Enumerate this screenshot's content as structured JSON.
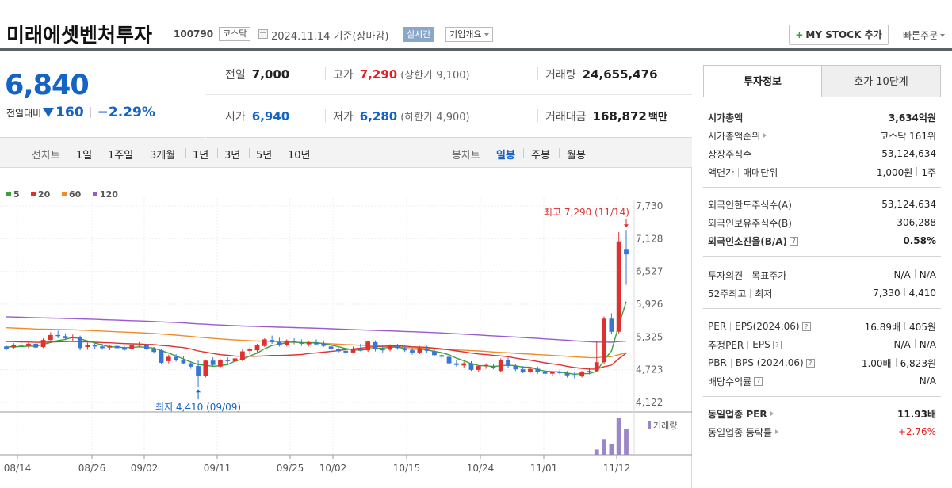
{
  "header": {
    "name": "미래에셋벤처투자",
    "code": "100790",
    "market": "코스닥",
    "date": "2024.11.14  기준(장마감)",
    "realtime": "실시간",
    "company_info": "기업개요",
    "mystock_plus": "+",
    "mystock": "MY STOCK 추가",
    "quick_order": "빠른주문"
  },
  "price": {
    "current": "6,840",
    "change_label": "전일대비",
    "change": "160",
    "change_pct": "−2.29%"
  },
  "quotes": {
    "prev_label": "전일",
    "prev": "7,000",
    "high_label": "고가",
    "high": "7,290",
    "upper_limit": "(상한가 9,100)",
    "volume_label": "거래량",
    "volume": "24,655,476",
    "open_label": "시가",
    "open": "6,940",
    "low_label": "저가",
    "low": "6,280",
    "lower_limit": "(하한가 4,900)",
    "amount_label": "거래대금",
    "amount": "168,872",
    "amount_unit": "백만"
  },
  "periods": {
    "line_label": "선차트",
    "line": [
      "1일",
      "1주일",
      "3개월",
      "1년",
      "3년",
      "5년",
      "10년"
    ],
    "candle_label": "봉차트",
    "candle": [
      "일봉",
      "주봉",
      "월봉"
    ],
    "selected_candle": "일봉"
  },
  "chart_data": {
    "type": "candlestick",
    "legend": [
      {
        "name": "5",
        "color": "#3aa03a"
      },
      {
        "name": "20",
        "color": "#e03131"
      },
      {
        "name": "60",
        "color": "#f08c2c"
      },
      {
        "name": "120",
        "color": "#9b59d0"
      }
    ],
    "y_ticks": [
      "7,730",
      "7,128",
      "6,527",
      "5,926",
      "5,325",
      "4,723",
      "4,122"
    ],
    "ylim": [
      4122,
      7730
    ],
    "x_ticks": [
      "08/14",
      "08/26",
      "09/02",
      "09/11",
      "09/25",
      "10/02",
      "10/15",
      "10/24",
      "11/01",
      "11/12"
    ],
    "high_annotation": "최고 7,290 (11/14)",
    "low_annotation": "최저 4,410 (09/09)",
    "volume_label": "거래량",
    "candles": [
      [
        5150,
        5180,
        5080,
        5100
      ],
      [
        5130,
        5210,
        5100,
        5180
      ],
      [
        5180,
        5260,
        5140,
        5160
      ],
      [
        5160,
        5230,
        5120,
        5200
      ],
      [
        5200,
        5260,
        5110,
        5130
      ],
      [
        5140,
        5300,
        5120,
        5270
      ],
      [
        5270,
        5410,
        5220,
        5360
      ],
      [
        5360,
        5440,
        5300,
        5340
      ],
      [
        5340,
        5390,
        5270,
        5300
      ],
      [
        5300,
        5370,
        5250,
        5330
      ],
      [
        5330,
        5350,
        5080,
        5120
      ],
      [
        5140,
        5220,
        5090,
        5170
      ],
      [
        5170,
        5210,
        5110,
        5150
      ],
      [
        5150,
        5200,
        5090,
        5120
      ],
      [
        5130,
        5180,
        5080,
        5160
      ],
      [
        5160,
        5190,
        5100,
        5120
      ],
      [
        5130,
        5160,
        5070,
        5090
      ],
      [
        5110,
        5210,
        5080,
        5180
      ],
      [
        5180,
        5230,
        5130,
        5170
      ],
      [
        5180,
        5200,
        5090,
        5110
      ],
      [
        5100,
        5140,
        5020,
        5050
      ],
      [
        5080,
        5100,
        4820,
        4850
      ],
      [
        4880,
        5000,
        4840,
        4960
      ],
      [
        4960,
        5010,
        4870,
        4900
      ],
      [
        4900,
        4980,
        4820,
        4840
      ],
      [
        4840,
        4880,
        4740,
        4780
      ],
      [
        4790,
        4900,
        4410,
        4610
      ],
      [
        4610,
        4910,
        4580,
        4890
      ],
      [
        4890,
        4950,
        4790,
        4810
      ],
      [
        4780,
        4920,
        4760,
        4900
      ],
      [
        4900,
        4950,
        4830,
        4880
      ],
      [
        4880,
        4960,
        4840,
        4930
      ],
      [
        4900,
        5110,
        4880,
        5060
      ],
      [
        5070,
        5140,
        5000,
        5100
      ],
      [
        5080,
        5200,
        5040,
        5170
      ],
      [
        5160,
        5300,
        5140,
        5280
      ],
      [
        5270,
        5350,
        5200,
        5230
      ],
      [
        5230,
        5310,
        5150,
        5170
      ],
      [
        5180,
        5280,
        5150,
        5260
      ],
      [
        5250,
        5300,
        5190,
        5230
      ],
      [
        5220,
        5280,
        5160,
        5200
      ],
      [
        5190,
        5250,
        5150,
        5230
      ],
      [
        5220,
        5280,
        5170,
        5190
      ],
      [
        5200,
        5260,
        5140,
        5160
      ],
      [
        5150,
        5200,
        5080,
        5100
      ],
      [
        5100,
        5130,
        5020,
        5060
      ],
      [
        5070,
        5100,
        5010,
        5040
      ],
      [
        5040,
        5150,
        5020,
        5110
      ],
      [
        5100,
        5200,
        5060,
        5080
      ],
      [
        5080,
        5260,
        5050,
        5240
      ],
      [
        5230,
        5260,
        5060,
        5100
      ],
      [
        5100,
        5150,
        5040,
        5080
      ],
      [
        5090,
        5190,
        5060,
        5170
      ],
      [
        5160,
        5200,
        5090,
        5120
      ],
      [
        5120,
        5170,
        5050,
        5080
      ],
      [
        5080,
        5120,
        5000,
        5040
      ],
      [
        5040,
        5160,
        5010,
        5120
      ],
      [
        5110,
        5160,
        5040,
        5070
      ],
      [
        5060,
        5110,
        4970,
        4990
      ],
      [
        4990,
        5040,
        4930,
        4960
      ],
      [
        4960,
        5000,
        4810,
        4840
      ],
      [
        4840,
        4900,
        4780,
        4810
      ],
      [
        4800,
        4870,
        4750,
        4840
      ],
      [
        4840,
        4880,
        4700,
        4720
      ],
      [
        4720,
        4800,
        4680,
        4790
      ],
      [
        4790,
        4840,
        4740,
        4810
      ],
      [
        4780,
        4820,
        4730,
        4750
      ],
      [
        4700,
        4930,
        4680,
        4900
      ],
      [
        4900,
        4950,
        4760,
        4790
      ],
      [
        4790,
        4830,
        4700,
        4730
      ],
      [
        4730,
        4790,
        4660,
        4680
      ],
      [
        4690,
        4760,
        4660,
        4740
      ],
      [
        4740,
        4780,
        4650,
        4690
      ],
      [
        4680,
        4740,
        4620,
        4650
      ],
      [
        4650,
        4700,
        4600,
        4680
      ],
      [
        4680,
        4720,
        4630,
        4660
      ],
      [
        4660,
        4700,
        4580,
        4620
      ],
      [
        4620,
        4680,
        4560,
        4600
      ],
      [
        4600,
        4700,
        4580,
        4690
      ],
      [
        4690,
        4750,
        4640,
        4700
      ],
      [
        4700,
        5250,
        4690,
        4860
      ],
      [
        4860,
        5700,
        4830,
        5660
      ],
      [
        5660,
        5760,
        5380,
        5420
      ],
      [
        5420,
        7250,
        5380,
        7080
      ],
      [
        6940,
        7290,
        6280,
        6840
      ]
    ],
    "volumes": [
      0,
      0,
      0,
      0,
      0,
      0,
      0,
      0,
      0,
      0,
      0,
      0,
      0,
      0,
      0,
      0,
      0,
      0,
      0,
      0,
      0,
      0,
      0,
      0,
      0,
      0,
      0,
      0,
      0,
      0,
      0,
      0,
      0,
      0,
      0,
      0,
      0,
      0,
      0,
      0,
      0,
      0,
      0,
      0,
      0,
      0,
      0,
      0,
      0,
      0,
      0,
      0,
      0,
      0,
      0,
      0,
      0,
      0,
      0,
      0,
      0,
      0,
      0,
      0,
      0,
      0,
      0,
      0,
      0,
      0,
      0,
      0,
      0,
      0,
      0,
      0,
      0,
      0,
      0,
      0,
      1,
      3,
      2,
      7,
      5
    ]
  },
  "right": {
    "tab_active": "투자정보",
    "tab_other": "호가 10단계",
    "s1": [
      {
        "label": "시가총액",
        "value": "3,634억원",
        "bold": true
      },
      {
        "label": "시가총액순위",
        "value": "코스닥 161위",
        "arrow": true
      },
      {
        "label": "상장주식수",
        "value": "53,124,634"
      },
      {
        "label": "액면가",
        "label2": "매매단위",
        "value": "1,000원",
        "value2": "1주"
      }
    ],
    "s2": [
      {
        "label": "외국인한도주식수(A)",
        "value": "53,124,634"
      },
      {
        "label": "외국인보유주식수(B)",
        "value": "306,288"
      },
      {
        "label": "외국인소진율(B/A)",
        "value": "0.58%",
        "bold": true,
        "help": "?"
      }
    ],
    "s3": [
      {
        "label": "투자의견",
        "label2": "목표주가",
        "value": "N/A",
        "value2": "N/A"
      },
      {
        "label": "52주최고",
        "label2": "최저",
        "value": "7,330",
        "value2": "4,410"
      }
    ],
    "s4": [
      {
        "label": "PER",
        "label2": "EPS(2024.06)",
        "value": "16.89배",
        "value2": "405원",
        "help": "?"
      },
      {
        "label": "추정PER",
        "label2": "EPS",
        "value": "N/A",
        "value2": "N/A",
        "help": "?"
      },
      {
        "label": "PBR",
        "label2": "BPS (2024.06)",
        "value": "1.00배",
        "value2": "6,823원",
        "help": "?"
      },
      {
        "label": "배당수익률",
        "value": "N/A",
        "help": "?"
      }
    ],
    "s5": [
      {
        "label": "동일업종 PER",
        "value": "11.93배",
        "bold": true,
        "arrow": true
      },
      {
        "label": "동일업종 등락률",
        "value": "+2.76%",
        "red": true,
        "arrow": true
      }
    ]
  }
}
